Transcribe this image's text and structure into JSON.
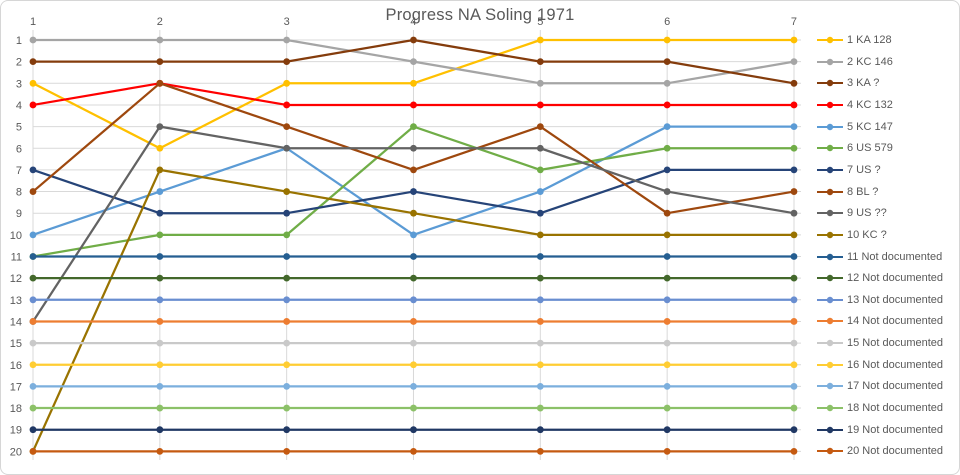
{
  "chart_data": {
    "type": "line",
    "title": "Progress NA Soling 1971",
    "xlabel": "",
    "ylabel": "",
    "x_axis_position": "top",
    "y_axis_inverted": true,
    "xlim": [
      1,
      7
    ],
    "ylim": [
      1,
      20
    ],
    "grid": true,
    "grid_color": "#d9d9d9",
    "text_color": "#595959",
    "legend_position": "right",
    "x_ticks": [
      1,
      2,
      3,
      4,
      5,
      6,
      7
    ],
    "y_ticks": [
      1,
      2,
      3,
      4,
      5,
      6,
      7,
      8,
      9,
      10,
      11,
      12,
      13,
      14,
      15,
      16,
      17,
      18,
      19,
      20
    ],
    "series": [
      {
        "name": "1 KA 128",
        "color": "#FFC000",
        "values": [
          3,
          6,
          3,
          3,
          1,
          1,
          1
        ]
      },
      {
        "name": "2 KC 146",
        "color": "#A5A5A5",
        "values": [
          1,
          1,
          1,
          2,
          3,
          3,
          2
        ]
      },
      {
        "name": "3 KA ?",
        "color": "#843C0C",
        "values": [
          2,
          2,
          2,
          1,
          2,
          2,
          3
        ]
      },
      {
        "name": "4 KC 132",
        "color": "#FF0000",
        "values": [
          4,
          3,
          4,
          4,
          4,
          4,
          4
        ]
      },
      {
        "name": "5 KC 147",
        "color": "#5B9BD5",
        "values": [
          10,
          8,
          6,
          10,
          8,
          5,
          5
        ]
      },
      {
        "name": "6 US 579",
        "color": "#70AD47",
        "values": [
          11,
          10,
          10,
          5,
          7,
          6,
          6
        ]
      },
      {
        "name": "7 US ?",
        "color": "#264478",
        "values": [
          7,
          9,
          9,
          8,
          9,
          7,
          7
        ]
      },
      {
        "name": "8 BL ?",
        "color": "#9E480E",
        "values": [
          8,
          3,
          5,
          7,
          5,
          9,
          8
        ]
      },
      {
        "name": "9 US ??",
        "color": "#636363",
        "values": [
          14,
          5,
          6,
          6,
          6,
          8,
          9
        ]
      },
      {
        "name": "10 KC ?",
        "color": "#997300",
        "values": [
          20,
          7,
          8,
          9,
          10,
          10,
          10
        ]
      },
      {
        "name": "11 Not documented",
        "color": "#255E91",
        "values": [
          11,
          11,
          11,
          11,
          11,
          11,
          11
        ]
      },
      {
        "name": "12 Not documented",
        "color": "#43682B",
        "values": [
          12,
          12,
          12,
          12,
          12,
          12,
          12
        ]
      },
      {
        "name": "13 Not documented",
        "color": "#698ED0",
        "values": [
          13,
          13,
          13,
          13,
          13,
          13,
          13
        ]
      },
      {
        "name": "14 Not documented",
        "color": "#ED7D31",
        "values": [
          14,
          14,
          14,
          14,
          14,
          14,
          14
        ]
      },
      {
        "name": "15 Not documented",
        "color": "#C9C9C9",
        "values": [
          15,
          15,
          15,
          15,
          15,
          15,
          15
        ]
      },
      {
        "name": "16 Not documented",
        "color": "#FFCD33",
        "values": [
          16,
          16,
          16,
          16,
          16,
          16,
          16
        ]
      },
      {
        "name": "17 Not documented",
        "color": "#7CAFDD",
        "values": [
          17,
          17,
          17,
          17,
          17,
          17,
          17
        ]
      },
      {
        "name": "18 Not documented",
        "color": "#8CC168",
        "values": [
          18,
          18,
          18,
          18,
          18,
          18,
          18
        ]
      },
      {
        "name": "19 Not documented",
        "color": "#203864",
        "values": [
          19,
          19,
          19,
          19,
          19,
          19,
          19
        ]
      },
      {
        "name": "20 Not documented",
        "color": "#C55A11",
        "values": [
          20,
          20,
          20,
          20,
          20,
          20,
          20
        ]
      }
    ]
  }
}
